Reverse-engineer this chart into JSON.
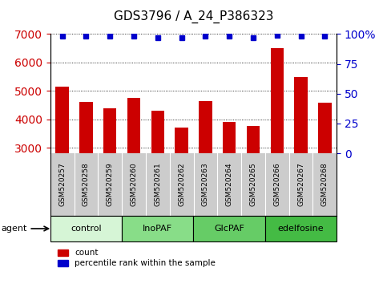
{
  "title": "GDS3796 / A_24_P386323",
  "samples": [
    "GSM520257",
    "GSM520258",
    "GSM520259",
    "GSM520260",
    "GSM520261",
    "GSM520262",
    "GSM520263",
    "GSM520264",
    "GSM520265",
    "GSM520266",
    "GSM520267",
    "GSM520268"
  ],
  "counts": [
    5150,
    4600,
    4380,
    4750,
    4300,
    3700,
    4650,
    3900,
    3760,
    6500,
    5500,
    4580
  ],
  "percentile_ranks": [
    98,
    98,
    98,
    98,
    97,
    97,
    98,
    98,
    97,
    99,
    98,
    98
  ],
  "groups": [
    {
      "label": "control",
      "start": 0,
      "end": 3,
      "color": "#d6f5d6"
    },
    {
      "label": "InoPAF",
      "start": 3,
      "end": 6,
      "color": "#88dd88"
    },
    {
      "label": "GlcPAF",
      "start": 6,
      "end": 9,
      "color": "#66cc66"
    },
    {
      "label": "edelfosine",
      "start": 9,
      "end": 12,
      "color": "#44bb44"
    }
  ],
  "ylim_left": [
    2800,
    7000
  ],
  "ylim_right": [
    0,
    100
  ],
  "yticks_left": [
    3000,
    4000,
    5000,
    6000,
    7000
  ],
  "yticks_right": [
    0,
    25,
    50,
    75,
    100
  ],
  "bar_color": "#cc0000",
  "dot_color": "#0000cc",
  "plot_bg": "#ffffff",
  "sample_area_bg": "#cccccc",
  "legend_items": [
    {
      "label": "count",
      "color": "#cc0000"
    },
    {
      "label": "percentile rank within the sample",
      "color": "#0000cc"
    }
  ],
  "agent_label": "agent",
  "sample_label_fontsize": 6.5,
  "title_fontsize": 11,
  "bar_width": 0.55
}
